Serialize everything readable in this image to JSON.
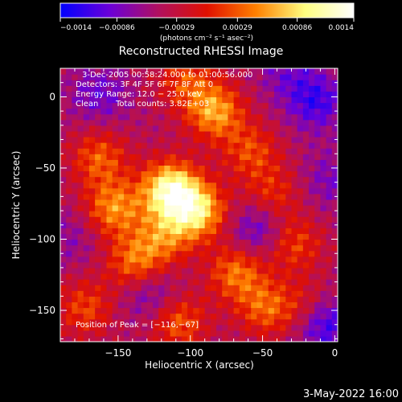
{
  "chart_data": {
    "type": "heatmap",
    "title": "Reconstructed RHESSI Image",
    "xlabel": "Heliocentric X (arcsec)",
    "ylabel": "Heliocentric Y (arcsec)",
    "xlim": [
      -190,
      2
    ],
    "ylim": [
      -172,
      20
    ],
    "x_ticks": [
      -150,
      -100,
      -50,
      0
    ],
    "y_ticks": [
      0,
      -50,
      -100,
      -150
    ],
    "x_tick_labels": [
      "−150",
      "−100",
      "−50",
      "0"
    ],
    "y_tick_labels": [
      "0",
      "−50",
      "−100",
      "−150"
    ],
    "colorbar": {
      "range": [
        -0.0014,
        0.0014
      ],
      "ticks": [
        -0.0014,
        -0.00086,
        -0.00029,
        0.00029,
        0.00086,
        0.0014
      ],
      "tick_labels": [
        "−0.0014",
        "−0.00086",
        "−0.00029",
        "0.00029",
        "0.00086",
        "0.0014"
      ],
      "unit_label": "(photons cm⁻² s⁻¹ asec⁻²)",
      "colors": [
        "#0000ff",
        "#6a00d8",
        "#b01060",
        "#e01000",
        "#ff8000",
        "#ffff80",
        "#ffffff"
      ]
    },
    "annotations": {
      "time": "3-Dec-2005 00:58:24.000 to 01:00:56.000",
      "detectors": "Detectors: 3F 4F 5F 6F 7F 8F Att 0",
      "energy": "Energy Range: 12.0 − 25.0 keV",
      "clean": "Clean",
      "counts": "Total counts: 3.82E+03",
      "peak": "Position of Peak = [−116,−67]"
    },
    "peak": [
      -116,
      -67
    ],
    "sources": [
      {
        "x": -116,
        "y": -67,
        "value": 0.0014
      },
      {
        "x": -97,
        "y": -82,
        "value": 0.0011
      },
      {
        "x": -85,
        "y": -12,
        "value": 0.0009
      },
      {
        "x": -155,
        "y": -80,
        "value": 0.0008
      },
      {
        "x": -140,
        "y": -118,
        "value": 0.0007
      },
      {
        "x": -70,
        "y": -125,
        "value": 0.0007
      },
      {
        "x": -165,
        "y": -45,
        "value": 0.0006
      },
      {
        "x": -110,
        "y": -160,
        "value": 0.0006
      },
      {
        "x": -50,
        "y": -150,
        "value": 0.0006
      },
      {
        "x": -120,
        "y": -100,
        "value": 0.0006
      },
      {
        "x": -60,
        "y": -40,
        "value": 0.0005
      },
      {
        "x": -30,
        "y": -105,
        "value": 0.0005
      },
      {
        "x": -175,
        "y": -150,
        "value": 0.0005
      },
      {
        "x": -105,
        "y": 10,
        "value": 0.0005
      },
      {
        "x": -45,
        "y": -70,
        "value": 0.0004
      },
      {
        "x": -20,
        "y": -150,
        "value": 0.0004
      },
      {
        "x": -15,
        "y": -5,
        "value": -0.0008
      },
      {
        "x": -10,
        "y": -160,
        "value": -0.001
      },
      {
        "x": -165,
        "y": 0,
        "value": -0.0006
      },
      {
        "x": -35,
        "y": 15,
        "value": -0.0005
      },
      {
        "x": -55,
        "y": -95,
        "value": -0.0007
      },
      {
        "x": -130,
        "y": -140,
        "value": -0.0006
      },
      {
        "x": -5,
        "y": -60,
        "value": -0.0005
      },
      {
        "x": -185,
        "y": -100,
        "value": -0.0004
      }
    ]
  },
  "footer_date": "3-May-2022 16:00"
}
